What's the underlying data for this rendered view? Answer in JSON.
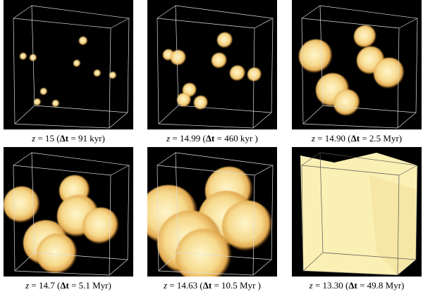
{
  "panels": [
    {
      "caption": [
        "z",
        " = 15 (",
        "Δt",
        " = 91 kyr)"
      ]
    },
    {
      "caption": [
        "z",
        " = 14.99 (",
        "Δt",
        " = 460 kyr )"
      ]
    },
    {
      "caption": [
        "z",
        " = 14.90 (",
        "Δt",
        " = 2.5 Myr)"
      ]
    },
    {
      "caption": [
        "z",
        " = 14.7 (",
        "Δt",
        " = 5.1 Myr)"
      ]
    },
    {
      "caption": [
        "z",
        " = 14.63 (",
        "Δt",
        " = 10.5 Myr )"
      ]
    },
    {
      "caption": [
        "z",
        " = 13.30 (",
        "Δt",
        " = 49.8 Myr)"
      ]
    }
  ]
}
